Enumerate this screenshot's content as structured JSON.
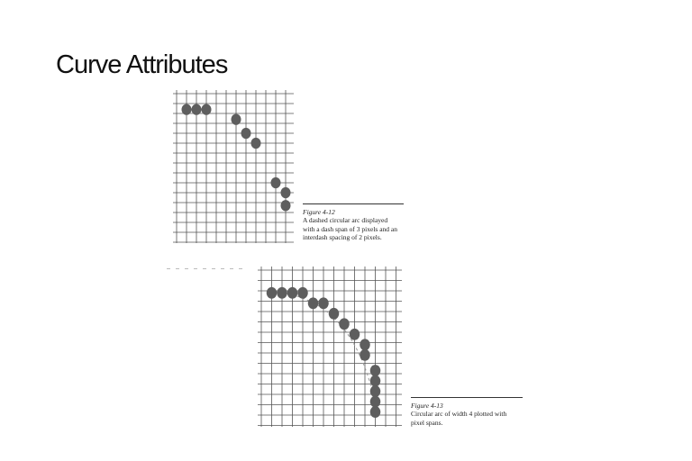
{
  "slide": {
    "title": "Curve Attributes"
  },
  "figure_12": {
    "label": "Figure 4-12",
    "caption_lines": [
      "A dashed circular arc displayed",
      "with a dash span of 3 pixels and an",
      "interdash spacing of 2 pixels."
    ]
  },
  "figure_13": {
    "label": "Figure 4-13",
    "caption_lines": [
      "Circular arc of width 4 plotted with",
      "pixel spans."
    ]
  },
  "colors": {
    "grid": "#555555",
    "pixel": "#5e5e5e",
    "text": "#111111"
  }
}
